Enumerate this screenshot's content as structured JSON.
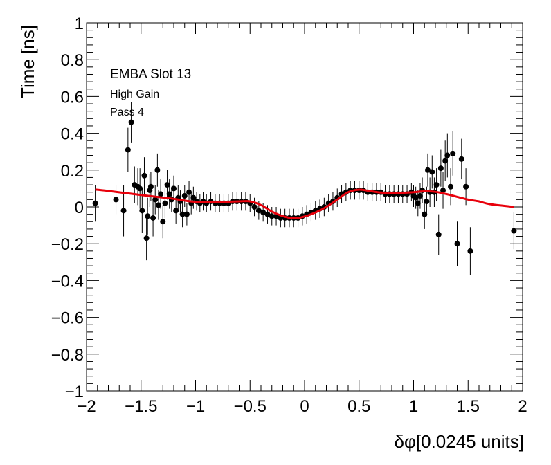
{
  "chart_data": {
    "type": "scatter",
    "title": "",
    "xlabel": "δφ[0.0245 units]",
    "ylabel": "Time [ns]",
    "xlim": [
      -2,
      2
    ],
    "ylim": [
      -1,
      1
    ],
    "x_ticks": [
      -2,
      -1.5,
      -1,
      -0.5,
      0,
      0.5,
      1,
      1.5,
      2
    ],
    "x_tick_labels": [
      "−2",
      "−1.5",
      "−1",
      "−0.5",
      "0",
      "0.5",
      "1",
      "1.5",
      "2"
    ],
    "y_ticks": [
      -1,
      -0.8,
      -0.6,
      -0.4,
      -0.2,
      0,
      0.2,
      0.4,
      0.6,
      0.8,
      1
    ],
    "y_tick_labels": [
      "−1",
      "−0.8",
      "−0.6",
      "−0.4",
      "−0.2",
      "0",
      "0.2",
      "0.4",
      "0.6",
      "0.8",
      "1"
    ],
    "grid": false,
    "annotations": [
      "EMBA Slot 13",
      "High Gain",
      "Pass 4"
    ],
    "colors": {
      "points": "#000000",
      "fit": "#e8000b",
      "frame": "#000000"
    },
    "series": [
      {
        "type": "scatter_with_error",
        "points": [
          {
            "x": -1.92,
            "y": 0.02,
            "err": 0.1
          },
          {
            "x": -1.73,
            "y": 0.04,
            "err": 0.08
          },
          {
            "x": -1.66,
            "y": -0.02,
            "err": 0.14
          },
          {
            "x": -1.62,
            "y": 0.31,
            "err": 0.12
          },
          {
            "x": -1.59,
            "y": 0.46,
            "err": 0.11
          },
          {
            "x": -1.56,
            "y": 0.12,
            "err": 0.1
          },
          {
            "x": -1.53,
            "y": 0.11,
            "err": 0.1
          },
          {
            "x": -1.51,
            "y": 0.1,
            "err": 0.11
          },
          {
            "x": -1.49,
            "y": -0.02,
            "err": 0.12
          },
          {
            "x": -1.47,
            "y": 0.17,
            "err": 0.1
          },
          {
            "x": -1.45,
            "y": -0.17,
            "err": 0.12
          },
          {
            "x": -1.44,
            "y": -0.05,
            "err": 0.1
          },
          {
            "x": -1.42,
            "y": 0.09,
            "err": 0.09
          },
          {
            "x": -1.41,
            "y": 0.11,
            "err": 0.08
          },
          {
            "x": -1.39,
            "y": -0.06,
            "err": 0.1
          },
          {
            "x": -1.37,
            "y": 0.04,
            "err": 0.08
          },
          {
            "x": -1.35,
            "y": 0.2,
            "err": 0.09
          },
          {
            "x": -1.34,
            "y": 0.01,
            "err": 0.08
          },
          {
            "x": -1.32,
            "y": 0.07,
            "err": 0.08
          },
          {
            "x": -1.3,
            "y": -0.08,
            "err": 0.09
          },
          {
            "x": -1.28,
            "y": 0.02,
            "err": 0.08
          },
          {
            "x": -1.26,
            "y": 0.12,
            "err": 0.08
          },
          {
            "x": -1.24,
            "y": 0.07,
            "err": 0.08
          },
          {
            "x": -1.22,
            "y": 0.04,
            "err": 0.07
          },
          {
            "x": -1.2,
            "y": 0.1,
            "err": 0.07
          },
          {
            "x": -1.18,
            "y": -0.02,
            "err": 0.07
          },
          {
            "x": -1.16,
            "y": 0.05,
            "err": 0.07
          },
          {
            "x": -1.14,
            "y": 0.03,
            "err": 0.06
          },
          {
            "x": -1.12,
            "y": -0.04,
            "err": 0.07
          },
          {
            "x": -1.1,
            "y": 0.06,
            "err": 0.06
          },
          {
            "x": -1.08,
            "y": -0.04,
            "err": 0.06
          },
          {
            "x": -1.06,
            "y": 0.08,
            "err": 0.06
          },
          {
            "x": -1.04,
            "y": 0.02,
            "err": 0.06
          },
          {
            "x": -1.02,
            "y": 0.05,
            "err": 0.06
          },
          {
            "x": -0.99,
            "y": 0.03,
            "err": 0.05
          },
          {
            "x": -0.96,
            "y": 0.02,
            "err": 0.05
          },
          {
            "x": -0.93,
            "y": 0.03,
            "err": 0.05
          },
          {
            "x": -0.9,
            "y": 0.02,
            "err": 0.05
          },
          {
            "x": -0.86,
            "y": 0.03,
            "err": 0.05
          },
          {
            "x": -0.82,
            "y": 0.02,
            "err": 0.05
          },
          {
            "x": -0.78,
            "y": 0.02,
            "err": 0.05
          },
          {
            "x": -0.74,
            "y": 0.02,
            "err": 0.05
          },
          {
            "x": -0.7,
            "y": 0.02,
            "err": 0.05
          },
          {
            "x": -0.66,
            "y": 0.03,
            "err": 0.05
          },
          {
            "x": -0.62,
            "y": 0.03,
            "err": 0.05
          },
          {
            "x": -0.58,
            "y": 0.03,
            "err": 0.05
          },
          {
            "x": -0.54,
            "y": 0.03,
            "err": 0.05
          },
          {
            "x": -0.5,
            "y": 0.02,
            "err": 0.05
          },
          {
            "x": -0.46,
            "y": 0.0,
            "err": 0.05
          },
          {
            "x": -0.42,
            "y": -0.02,
            "err": 0.05
          },
          {
            "x": -0.38,
            "y": -0.03,
            "err": 0.05
          },
          {
            "x": -0.34,
            "y": -0.04,
            "err": 0.05
          },
          {
            "x": -0.3,
            "y": -0.05,
            "err": 0.05
          },
          {
            "x": -0.26,
            "y": -0.05,
            "err": 0.05
          },
          {
            "x": -0.22,
            "y": -0.06,
            "err": 0.05
          },
          {
            "x": -0.18,
            "y": -0.06,
            "err": 0.05
          },
          {
            "x": -0.14,
            "y": -0.06,
            "err": 0.05
          },
          {
            "x": -0.1,
            "y": -0.06,
            "err": 0.05
          },
          {
            "x": -0.06,
            "y": -0.06,
            "err": 0.05
          },
          {
            "x": -0.02,
            "y": -0.05,
            "err": 0.05
          },
          {
            "x": 0.02,
            "y": -0.04,
            "err": 0.05
          },
          {
            "x": 0.06,
            "y": -0.03,
            "err": 0.05
          },
          {
            "x": 0.1,
            "y": -0.02,
            "err": 0.05
          },
          {
            "x": 0.14,
            "y": -0.01,
            "err": 0.05
          },
          {
            "x": 0.18,
            "y": 0.0,
            "err": 0.05
          },
          {
            "x": 0.22,
            "y": 0.02,
            "err": 0.05
          },
          {
            "x": 0.26,
            "y": 0.03,
            "err": 0.05
          },
          {
            "x": 0.3,
            "y": 0.05,
            "err": 0.05
          },
          {
            "x": 0.34,
            "y": 0.07,
            "err": 0.05
          },
          {
            "x": 0.38,
            "y": 0.08,
            "err": 0.05
          },
          {
            "x": 0.42,
            "y": 0.09,
            "err": 0.05
          },
          {
            "x": 0.46,
            "y": 0.09,
            "err": 0.05
          },
          {
            "x": 0.5,
            "y": 0.09,
            "err": 0.05
          },
          {
            "x": 0.54,
            "y": 0.09,
            "err": 0.05
          },
          {
            "x": 0.58,
            "y": 0.08,
            "err": 0.05
          },
          {
            "x": 0.62,
            "y": 0.08,
            "err": 0.05
          },
          {
            "x": 0.66,
            "y": 0.08,
            "err": 0.05
          },
          {
            "x": 0.7,
            "y": 0.08,
            "err": 0.05
          },
          {
            "x": 0.74,
            "y": 0.07,
            "err": 0.05
          },
          {
            "x": 0.78,
            "y": 0.07,
            "err": 0.05
          },
          {
            "x": 0.82,
            "y": 0.07,
            "err": 0.05
          },
          {
            "x": 0.86,
            "y": 0.07,
            "err": 0.05
          },
          {
            "x": 0.9,
            "y": 0.07,
            "err": 0.05
          },
          {
            "x": 0.94,
            "y": 0.07,
            "err": 0.05
          },
          {
            "x": 0.98,
            "y": 0.08,
            "err": 0.05
          },
          {
            "x": 1.0,
            "y": 0.06,
            "err": 0.06
          },
          {
            "x": 1.02,
            "y": 0.05,
            "err": 0.06
          },
          {
            "x": 1.04,
            "y": 0.02,
            "err": 0.07
          },
          {
            "x": 1.06,
            "y": 0.06,
            "err": 0.07
          },
          {
            "x": 1.08,
            "y": 0.09,
            "err": 0.07
          },
          {
            "x": 1.1,
            "y": -0.04,
            "err": 0.08
          },
          {
            "x": 1.12,
            "y": 0.03,
            "err": 0.08
          },
          {
            "x": 1.13,
            "y": 0.2,
            "err": 0.09
          },
          {
            "x": 1.15,
            "y": 0.08,
            "err": 0.08
          },
          {
            "x": 1.17,
            "y": 0.19,
            "err": 0.09
          },
          {
            "x": 1.19,
            "y": 0.08,
            "err": 0.08
          },
          {
            "x": 1.21,
            "y": 0.12,
            "err": 0.09
          },
          {
            "x": 1.23,
            "y": -0.15,
            "err": 0.11
          },
          {
            "x": 1.25,
            "y": 0.21,
            "err": 0.1
          },
          {
            "x": 1.27,
            "y": 0.09,
            "err": 0.1
          },
          {
            "x": 1.29,
            "y": 0.25,
            "err": 0.11
          },
          {
            "x": 1.31,
            "y": 0.28,
            "err": 0.12
          },
          {
            "x": 1.34,
            "y": 0.11,
            "err": 0.1
          },
          {
            "x": 1.36,
            "y": 0.29,
            "err": 0.12
          },
          {
            "x": 1.4,
            "y": -0.2,
            "err": 0.12
          },
          {
            "x": 1.44,
            "y": 0.26,
            "err": 0.11
          },
          {
            "x": 1.48,
            "y": 0.11,
            "err": 0.1
          },
          {
            "x": 1.52,
            "y": -0.24,
            "err": 0.13
          },
          {
            "x": 1.92,
            "y": -0.13,
            "err": 0.1
          }
        ]
      },
      {
        "type": "line",
        "points": [
          [
            -1.92,
            0.095
          ],
          [
            -1.8,
            0.087
          ],
          [
            -1.6,
            0.072
          ],
          [
            -1.4,
            0.058
          ],
          [
            -1.2,
            0.044
          ],
          [
            -1.05,
            0.03
          ],
          [
            -0.9,
            0.026
          ],
          [
            -0.75,
            0.027
          ],
          [
            -0.6,
            0.03
          ],
          [
            -0.5,
            0.03
          ],
          [
            -0.4,
            0.01
          ],
          [
            -0.3,
            -0.025
          ],
          [
            -0.2,
            -0.05
          ],
          [
            -0.1,
            -0.062
          ],
          [
            0.0,
            -0.052
          ],
          [
            0.1,
            -0.03
          ],
          [
            0.2,
            0.0
          ],
          [
            0.3,
            0.04
          ],
          [
            0.4,
            0.08
          ],
          [
            0.5,
            0.094
          ],
          [
            0.6,
            0.086
          ],
          [
            0.7,
            0.078
          ],
          [
            0.8,
            0.075
          ],
          [
            0.9,
            0.077
          ],
          [
            1.0,
            0.08
          ],
          [
            1.1,
            0.085
          ],
          [
            1.2,
            0.082
          ],
          [
            1.3,
            0.07
          ],
          [
            1.4,
            0.055
          ],
          [
            1.5,
            0.04
          ],
          [
            1.6,
            0.03
          ],
          [
            1.7,
            0.015
          ],
          [
            1.92,
            0.0
          ]
        ]
      }
    ]
  }
}
